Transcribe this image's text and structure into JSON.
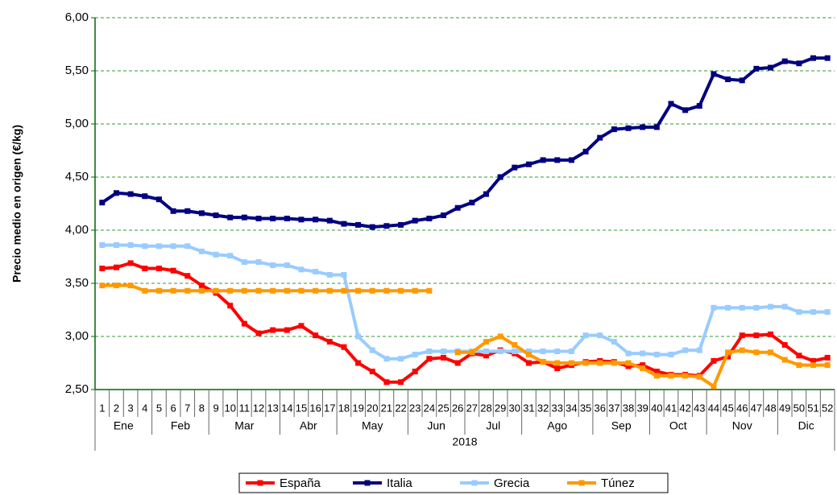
{
  "chart_data": {
    "type": "line",
    "y_label": "Precio medio en origen (€/kg)",
    "categories": [
      "1",
      "2",
      "3",
      "4",
      "5",
      "6",
      "7",
      "8",
      "9",
      "10",
      "11",
      "12",
      "13",
      "14",
      "15",
      "16",
      "17",
      "18",
      "19",
      "20",
      "21",
      "22",
      "23",
      "24",
      "25",
      "26",
      "27",
      "28",
      "29",
      "30",
      "31",
      "32",
      "33",
      "34",
      "35",
      "36",
      "37",
      "38",
      "39",
      "40",
      "41",
      "42",
      "43",
      "44",
      "45",
      "46",
      "47",
      "48",
      "49",
      "50",
      "51",
      "52"
    ],
    "x_groups": [
      {
        "label": "Ene",
        "span": 4
      },
      {
        "label": "Feb",
        "span": 4
      },
      {
        "label": "Mar",
        "span": 5
      },
      {
        "label": "Abr",
        "span": 4
      },
      {
        "label": "May",
        "span": 5
      },
      {
        "label": "Jun",
        "span": 4
      },
      {
        "label": "Jul",
        "span": 4
      },
      {
        "label": "Ago",
        "span": 5
      },
      {
        "label": "Sep",
        "span": 4
      },
      {
        "label": "Oct",
        "span": 4
      },
      {
        "label": "Nov",
        "span": 5
      },
      {
        "label": "Dic",
        "span": 4
      }
    ],
    "x_group_label": "2018",
    "series": [
      {
        "name": "España",
        "color": "#ff0000",
        "values": [
          3.64,
          3.65,
          3.69,
          3.64,
          3.64,
          3.62,
          3.57,
          3.48,
          3.41,
          3.29,
          3.12,
          3.03,
          3.06,
          3.06,
          3.1,
          3.01,
          2.95,
          2.9,
          2.75,
          2.67,
          2.57,
          2.57,
          2.67,
          2.79,
          2.8,
          2.75,
          2.84,
          2.82,
          2.87,
          2.84,
          2.75,
          2.76,
          2.7,
          2.73,
          2.76,
          2.77,
          2.76,
          2.72,
          2.73,
          2.67,
          2.64,
          2.64,
          2.63,
          2.77,
          2.81,
          3.01,
          3.01,
          3.02,
          2.92,
          2.82,
          2.77,
          2.8
        ]
      },
      {
        "name": "Italia",
        "color": "#000080",
        "values": [
          4.26,
          4.35,
          4.34,
          4.32,
          4.29,
          4.18,
          4.18,
          4.16,
          4.14,
          4.12,
          4.12,
          4.11,
          4.11,
          4.11,
          4.1,
          4.1,
          4.09,
          4.06,
          4.05,
          4.03,
          4.04,
          4.05,
          4.09,
          4.11,
          4.14,
          4.21,
          4.26,
          4.34,
          4.5,
          4.59,
          4.62,
          4.66,
          4.66,
          4.66,
          4.74,
          4.87,
          4.95,
          4.96,
          4.97,
          4.97,
          5.19,
          5.13,
          5.17,
          5.47,
          5.42,
          5.41,
          5.52,
          5.53,
          5.59,
          5.57,
          5.62,
          5.62
        ]
      },
      {
        "name": "Grecia",
        "color": "#99ccff",
        "values": [
          3.86,
          3.86,
          3.86,
          3.85,
          3.85,
          3.85,
          3.85,
          3.8,
          3.77,
          3.76,
          3.7,
          3.7,
          3.67,
          3.67,
          3.63,
          3.61,
          3.58,
          3.58,
          3.0,
          2.87,
          2.79,
          2.79,
          2.83,
          2.86,
          2.86,
          2.86,
          2.86,
          2.86,
          2.86,
          2.86,
          2.86,
          2.86,
          2.86,
          2.86,
          3.01,
          3.01,
          2.95,
          2.84,
          2.84,
          2.83,
          2.83,
          2.87,
          2.87,
          3.27,
          3.27,
          3.27,
          3.27,
          3.28,
          3.28,
          3.23,
          3.23,
          3.23
        ]
      },
      {
        "name": "Túnez",
        "color": "#ff9900",
        "values": [
          3.48,
          3.48,
          3.48,
          3.43,
          3.43,
          3.43,
          3.43,
          3.43,
          3.43,
          3.43,
          3.43,
          3.43,
          3.43,
          3.43,
          3.43,
          3.43,
          3.43,
          3.43,
          3.43,
          3.43,
          3.43,
          3.43,
          3.43,
          3.43,
          null,
          2.85,
          2.85,
          2.95,
          3.0,
          2.92,
          2.83,
          2.76,
          2.75,
          2.75,
          2.75,
          2.75,
          2.75,
          2.75,
          2.7,
          2.63,
          2.63,
          2.63,
          2.62,
          2.53,
          2.85,
          2.87,
          2.85,
          2.85,
          2.78,
          2.73,
          2.73,
          2.73
        ]
      }
    ],
    "ylim": [
      2.5,
      6.0
    ],
    "yticks": [
      {
        "value": 2.5,
        "label": "2,50"
      },
      {
        "value": 3.0,
        "label": "3,00"
      },
      {
        "value": 3.5,
        "label": "3,50"
      },
      {
        "value": 4.0,
        "label": "4,00"
      },
      {
        "value": 4.5,
        "label": "4,50"
      },
      {
        "value": 5.0,
        "label": "5,00"
      },
      {
        "value": 5.5,
        "label": "5,50"
      },
      {
        "value": 6.0,
        "label": "6,00"
      }
    ],
    "grid": true,
    "legend": "bottom"
  }
}
